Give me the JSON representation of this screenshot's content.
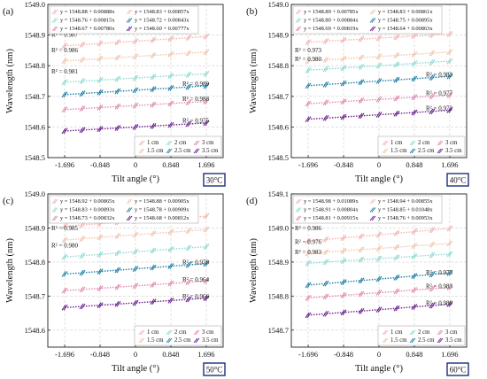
{
  "figure": {
    "common": {
      "xlabel": "Tilt angle (°)",
      "ylabel": "Wavelength (nm)",
      "xticks": [
        -1.696,
        -0.848,
        0,
        0.848,
        1.696
      ],
      "xtick_labels": [
        "-1.696",
        "-0.848",
        "0",
        "0.848",
        "1.696"
      ],
      "x_values": [
        -1.696,
        -1.272,
        -0.848,
        -0.424,
        0,
        0.424,
        0.848,
        1.272,
        1.696
      ],
      "legend_labels": [
        "1 cm",
        "2 cm",
        "3 cm",
        "1.5 cm",
        "2.5 cm",
        "3.5 cm"
      ],
      "series_colors": [
        "#f2b4b4",
        "#f0c6ad",
        "#8fdad0",
        "#1f7fa6",
        "#e08ab0",
        "#6a1f8c"
      ]
    },
    "panels": [
      {
        "label": "(a)",
        "temperature": "30°C"
      },
      {
        "label": "(b)",
        "temperature": "40°C"
      },
      {
        "label": "(c)",
        "temperature": "50°C"
      },
      {
        "label": "(d)",
        "temperature": "60°C"
      }
    ]
  },
  "chart_data": [
    {
      "type": "scatter",
      "title": "",
      "panel": "(a)",
      "temperature": "30°C",
      "xlabel": "Tilt angle (°)",
      "ylabel": "Wavelength (nm)",
      "xlim": [
        -2.1,
        2.1
      ],
      "ylim": [
        1548.5,
        1549.0
      ],
      "yticks": [
        1548.5,
        1548.6,
        1548.7,
        1548.8,
        1548.9,
        1549.0
      ],
      "ytick_labels": [
        "1548.5",
        "1548.6",
        "1548.7",
        "1548.8",
        "1548.9",
        "1549.0"
      ],
      "legend_position": "bottom-right",
      "equations": [
        "y = 1548.88 + 0.00888x",
        "y = 1548.83 + 0.00857x",
        "y = 1548.76 + 0.00815x",
        "y = 1548.72 + 0.00843x",
        "y = 1548.67 + 0.00780x",
        "y = 1548.60 + 0.00777x"
      ],
      "series": [
        {
          "name": "1 cm",
          "intercept": 1548.88,
          "slope": 0.00888,
          "r2": "R² = 0.987"
        },
        {
          "name": "1.5 cm",
          "intercept": 1548.83,
          "slope": 0.00857,
          "r2": "R² = 0.986"
        },
        {
          "name": "2 cm",
          "intercept": 1548.76,
          "slope": 0.00815,
          "r2": "R² = 0.981"
        },
        {
          "name": "2.5 cm",
          "intercept": 1548.72,
          "slope": 0.00843,
          "r2": "R² = 0.989"
        },
        {
          "name": "3 cm",
          "intercept": 1548.67,
          "slope": 0.0078,
          "r2": "R² = 0.988"
        },
        {
          "name": "3.5 cm",
          "intercept": 1548.6,
          "slope": 0.00777,
          "r2": "R² = 0.975"
        }
      ]
    },
    {
      "type": "scatter",
      "title": "",
      "panel": "(b)",
      "temperature": "40°C",
      "xlabel": "Tilt angle (°)",
      "ylabel": "Wavelength (nm)",
      "xlim": [
        -2.1,
        2.1
      ],
      "ylim": [
        1548.5,
        1549.0
      ],
      "yticks": [
        1548.5,
        1548.6,
        1548.7,
        1548.8,
        1548.9,
        1549.0
      ],
      "ytick_labels": [
        "1548.5",
        "1548.6",
        "1548.7",
        "1548.8",
        "1548.9",
        "1549.0"
      ],
      "legend_position": "bottom-right",
      "equations": [
        "y = 1548.89 + 0.00785x",
        "y = 1548.83 + 0.00861x",
        "y = 1548.80 + 0.00884x",
        "y = 1548.75 + 0.00895x",
        "y = 1548.69 + 0.00819x",
        "y = 1548.64 + 0.00863x"
      ],
      "series": [
        {
          "name": "1 cm",
          "intercept": 1548.89,
          "slope": 0.00785,
          "r2": "R² = 0.984"
        },
        {
          "name": "1.5 cm",
          "intercept": 1548.83,
          "slope": 0.00861,
          "r2": "R² = 0.973"
        },
        {
          "name": "2 cm",
          "intercept": 1548.8,
          "slope": 0.00884,
          "r2": "R² = 0.980"
        },
        {
          "name": "2.5 cm",
          "intercept": 1548.75,
          "slope": 0.00895,
          "r2": "R² = 0.983"
        },
        {
          "name": "3 cm",
          "intercept": 1548.69,
          "slope": 0.00819,
          "r2": "R² = 0.977"
        },
        {
          "name": "3.5 cm",
          "intercept": 1548.64,
          "slope": 0.00863,
          "r2": "R² = 0.972"
        }
      ]
    },
    {
      "type": "scatter",
      "title": "",
      "panel": "(c)",
      "temperature": "50°C",
      "xlabel": "Tilt angle (°)",
      "ylabel": "Wavelength (nm)",
      "xlim": [
        -2.1,
        2.1
      ],
      "ylim": [
        1548.55,
        1549.0
      ],
      "yticks": [
        1548.6,
        1548.7,
        1548.8,
        1548.9,
        1549.0
      ],
      "ytick_labels": [
        "1548.6",
        "1548.7",
        "1548.8",
        "1548.9",
        "1549.0"
      ],
      "legend_position": "bottom-right",
      "equations": [
        "y = 1548.92 + 0.00865x",
        "y = 1548.88 + 0.00905x",
        "y = 1548.83 + 0.00893x",
        "y = 1548.78 + 0.00909x",
        "y = 1548.73 + 0.00832x",
        "y = 1548.68 + 0.00812x"
      ],
      "series": [
        {
          "name": "1 cm",
          "intercept": 1548.92,
          "slope": 0.00865,
          "r2": "R² = 0.979"
        },
        {
          "name": "1.5 cm",
          "intercept": 1548.88,
          "slope": 0.00905,
          "r2": "R² = 0.985"
        },
        {
          "name": "2 cm",
          "intercept": 1548.83,
          "slope": 0.00893,
          "r2": "R² = 0.980"
        },
        {
          "name": "2.5 cm",
          "intercept": 1548.78,
          "slope": 0.00909,
          "r2": "R² = 0.978"
        },
        {
          "name": "3 cm",
          "intercept": 1548.73,
          "slope": 0.00832,
          "r2": "R² = 0.964"
        },
        {
          "name": "3.5 cm",
          "intercept": 1548.68,
          "slope": 0.00812,
          "r2": "R² = 0.966"
        }
      ]
    },
    {
      "type": "scatter",
      "title": "",
      "panel": "(d)",
      "temperature": "60°C",
      "xlabel": "Tilt angle (°)",
      "ylabel": "Wavelength (nm)",
      "xlim": [
        -2.1,
        2.1
      ],
      "ylim": [
        1548.65,
        1549.1
      ],
      "yticks": [
        1548.7,
        1548.8,
        1548.9,
        1549.0,
        1549.1
      ],
      "ytick_labels": [
        "1548.7",
        "1548.8",
        "1548.9",
        "1549.0",
        "1549.1"
      ],
      "legend_position": "bottom-right",
      "equations": [
        "y = 1548.98 + 0.01089x",
        "y = 1548.94 + 0.00855x",
        "y = 1548.91 + 0.00804x",
        "y = 1548.85 + 0.01048x",
        "y = 1548.81 + 0.00915x",
        "y = 1548.76 + 0.00953x"
      ],
      "series": [
        {
          "name": "1 cm",
          "intercept": 1548.98,
          "slope": 0.01089,
          "r2": "R² = 0.986"
        },
        {
          "name": "1.5 cm",
          "intercept": 1548.94,
          "slope": 0.00855,
          "r2": "R² = 0.976"
        },
        {
          "name": "2 cm",
          "intercept": 1548.91,
          "slope": 0.00804,
          "r2": "R² = 0.983"
        },
        {
          "name": "2.5 cm",
          "intercept": 1548.85,
          "slope": 0.01048,
          "r2": "R² = 0.973"
        },
        {
          "name": "3 cm",
          "intercept": 1548.81,
          "slope": 0.00915,
          "r2": "R² = 0.983"
        },
        {
          "name": "3.5 cm",
          "intercept": 1548.76,
          "slope": 0.00953,
          "r2": "R² = 0.980"
        }
      ]
    }
  ]
}
